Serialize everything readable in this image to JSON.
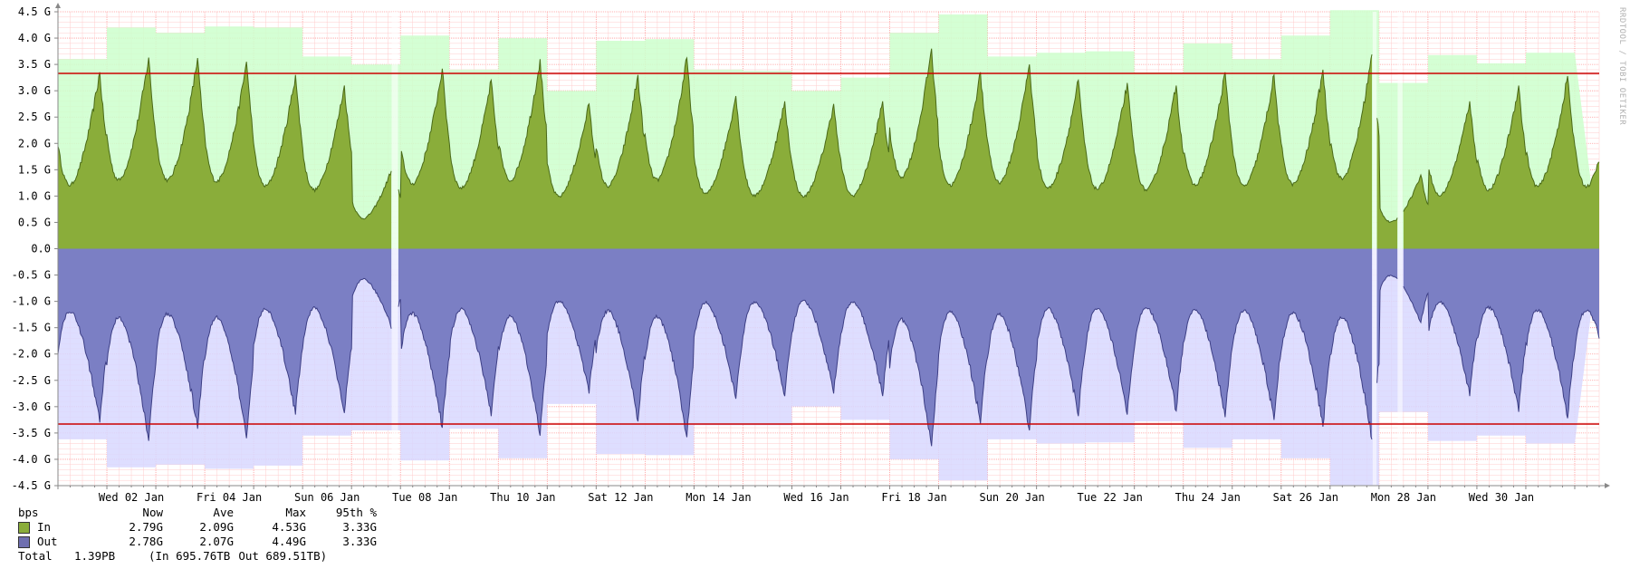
{
  "chart_data": {
    "type": "area",
    "unit_label": "bps",
    "ylim": [
      -4.5,
      4.5
    ],
    "y_ticks": [
      "4.5 G",
      "4.0 G",
      "3.5 G",
      "3.0 G",
      "2.5 G",
      "2.0 G",
      "1.5 G",
      "1.0 G",
      "0.5 G",
      "0.0",
      "-0.5 G",
      "-1.0 G",
      "-1.5 G",
      "-2.0 G",
      "-2.5 G",
      "-3.0 G",
      "-3.5 G",
      "-4.0 G",
      "-4.5 G"
    ],
    "x_ticks": [
      "Wed 02 Jan",
      "Fri 04 Jan",
      "Sun 06 Jan",
      "Tue 08 Jan",
      "Thu 10 Jan",
      "Sat 12 Jan",
      "Mon 14 Jan",
      "Wed 16 Jan",
      "Fri 18 Jan",
      "Sun 20 Jan",
      "Tue 22 Jan",
      "Thu 24 Jan",
      "Sat 26 Jan",
      "Mon 28 Jan",
      "Wed 30 Jan"
    ],
    "x_range_days": [
      0,
      31.5
    ],
    "grid": true,
    "threshold_95th": 3.33,
    "daily_max_in": [
      3.6,
      4.2,
      4.1,
      4.22,
      4.2,
      3.65,
      3.5,
      4.05,
      3.4,
      4.0,
      3.0,
      3.95,
      3.98,
      3.4,
      3.38,
      3.0,
      3.25,
      4.1,
      4.45,
      3.65,
      3.72,
      3.75,
      3.35,
      3.9,
      3.6,
      4.05,
      4.53,
      3.15,
      3.68,
      3.52,
      3.72
    ],
    "daily_max_out": [
      3.62,
      4.15,
      4.1,
      4.18,
      4.12,
      3.55,
      3.45,
      4.02,
      3.42,
      3.98,
      2.95,
      3.9,
      3.92,
      3.35,
      3.35,
      3.0,
      3.25,
      4.0,
      4.4,
      3.62,
      3.7,
      3.68,
      3.28,
      3.78,
      3.62,
      3.98,
      4.49,
      3.1,
      3.65,
      3.55,
      3.7
    ],
    "daily_peak_in": [
      3.35,
      3.63,
      3.62,
      3.55,
      3.3,
      3.1,
      1.6,
      3.42,
      3.2,
      3.6,
      2.75,
      3.3,
      3.62,
      2.9,
      2.8,
      2.75,
      2.8,
      3.8,
      3.35,
      3.5,
      3.2,
      3.15,
      3.1,
      3.35,
      3.3,
      3.4,
      3.69,
      1.4,
      2.8,
      3.1,
      3.28
    ],
    "daily_peak_out": [
      3.3,
      3.65,
      3.42,
      3.6,
      3.15,
      3.12,
      1.6,
      3.4,
      3.18,
      3.55,
      2.75,
      3.28,
      3.58,
      2.85,
      2.8,
      2.75,
      2.8,
      3.75,
      3.32,
      3.45,
      3.18,
      3.15,
      3.08,
      3.2,
      3.25,
      3.38,
      3.62,
      1.4,
      2.8,
      3.1,
      3.22
    ],
    "gaps": [
      {
        "series": "both",
        "start_day": 6.82,
        "end_day": 6.95
      },
      {
        "series": "both",
        "start_day": 26.87,
        "end_day": 26.95
      },
      {
        "series": "both",
        "start_day": 27.38,
        "end_day": 27.48
      }
    ],
    "series": [
      {
        "name": "In",
        "color": "#8aad3a",
        "max_color": "#ccffcc",
        "now": "2.79G",
        "ave": "2.09G",
        "max": "4.53G",
        "p95": "3.33G"
      },
      {
        "name": "Out",
        "color": "#7b7fc4",
        "max_color": "#d8d8ff",
        "now": "2.78G",
        "ave": "2.07G",
        "max": "4.49G",
        "p95": "3.33G"
      }
    ]
  },
  "legend": {
    "header": {
      "unit": "bps",
      "now": "Now",
      "ave": "Ave",
      "max": "Max",
      "p95": "95th %"
    },
    "total": {
      "label": "Total",
      "value": "1.39PB",
      "in": "(In 695.76TB",
      "out": "Out 689.51TB)"
    }
  },
  "watermark": "RRDTOOL / TOBI OETIKER",
  "colors": {
    "threshold": "#cc0000",
    "grid_minor": "#ffcccc",
    "grid_major": "#ff9999",
    "axis": "#888888"
  }
}
